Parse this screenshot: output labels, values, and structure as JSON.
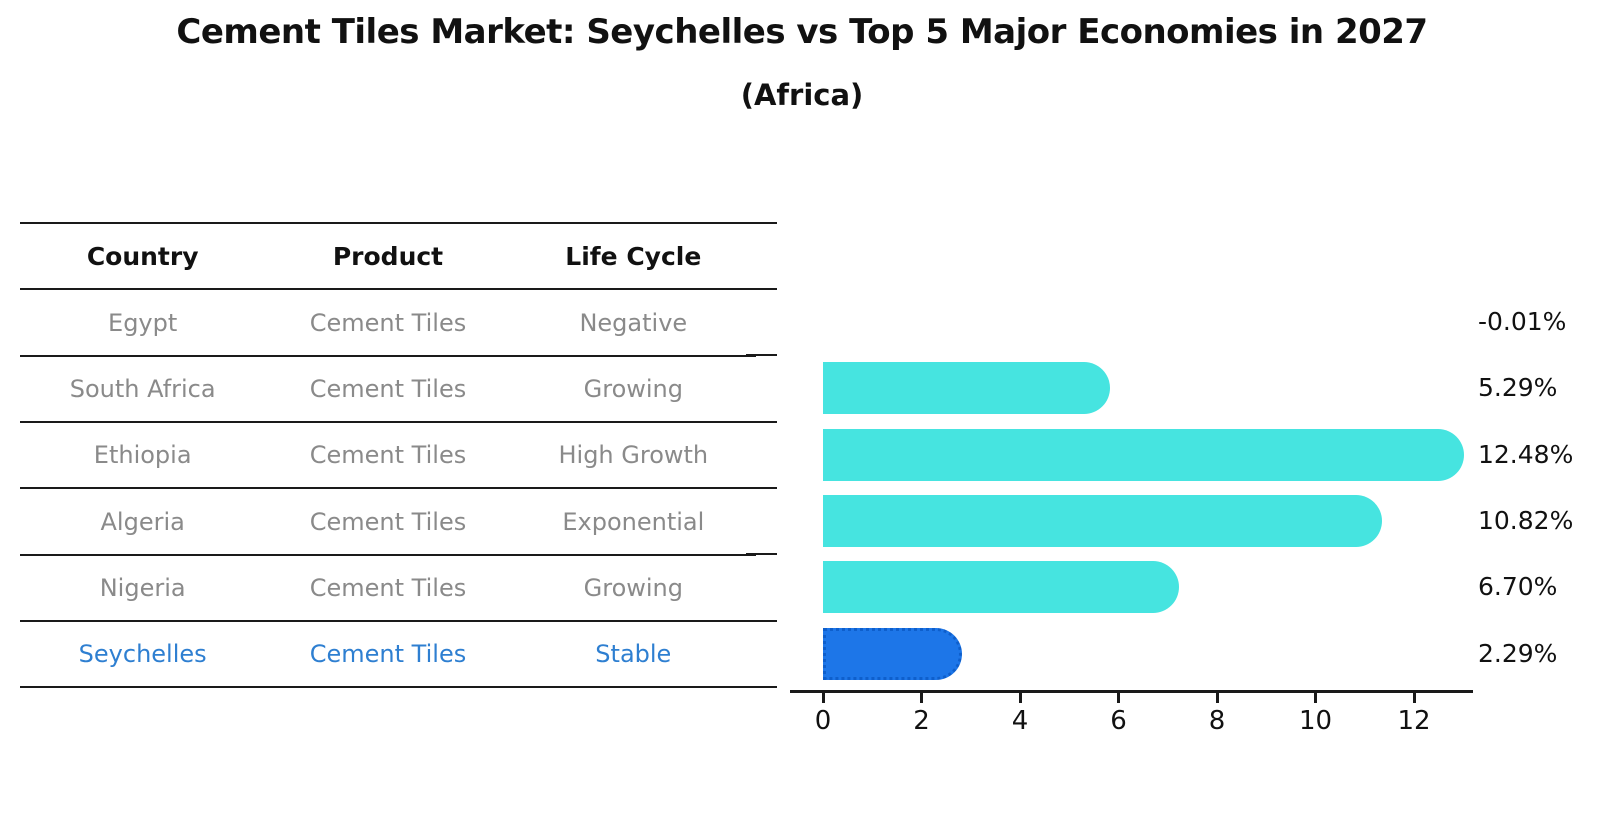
{
  "header": {
    "title": "Cement Tiles Market: Seychelles vs Top 5 Major Economies in 2027",
    "subtitle": "(Africa)"
  },
  "table": {
    "columns": [
      "Country",
      "Product",
      "Life Cycle"
    ],
    "rows": [
      {
        "country": "Egypt",
        "product": "Cement Tiles",
        "life_cycle": "Negative",
        "highlight": false
      },
      {
        "country": "South Africa",
        "product": "Cement Tiles",
        "life_cycle": "Growing",
        "highlight": false
      },
      {
        "country": "Ethiopia",
        "product": "Cement Tiles",
        "life_cycle": "High Growth",
        "highlight": false
      },
      {
        "country": "Algeria",
        "product": "Cement Tiles",
        "life_cycle": "Exponential",
        "highlight": false
      },
      {
        "country": "Nigeria",
        "product": "Cement Tiles",
        "life_cycle": "Growing",
        "highlight": false
      },
      {
        "country": "Seychelles",
        "product": "Cement Tiles",
        "life_cycle": "Stable",
        "highlight": true
      }
    ],
    "row_text_color": "#8a8a8a",
    "header_text_color": "#111111",
    "highlight_text_color": "#2E7FD1"
  },
  "chart_data": {
    "type": "bar",
    "orientation": "horizontal",
    "title": "Cement Tiles Market: Seychelles vs Top 5 Major Economies in 2027 (Africa)",
    "categories": [
      "Egypt",
      "South Africa",
      "Ethiopia",
      "Algeria",
      "Nigeria",
      "Seychelles"
    ],
    "values": [
      -0.01,
      5.29,
      12.48,
      10.82,
      6.7,
      2.29
    ],
    "value_labels": [
      "-0.01%",
      "5.29%",
      "12.48%",
      "10.82%",
      "6.70%",
      "2.29%"
    ],
    "x_ticks": [
      0,
      2,
      4,
      6,
      8,
      10,
      12
    ],
    "xlim": [
      -0.7,
      13.2
    ],
    "xlabel": "",
    "ylabel": "",
    "grid": false,
    "legend": false,
    "bar_color": "#46E4E0",
    "highlight_index": 5,
    "highlight_color": "#1D76E8",
    "highlight_border_style": "dotted",
    "highlight_border_color": "#0E5FCC"
  }
}
